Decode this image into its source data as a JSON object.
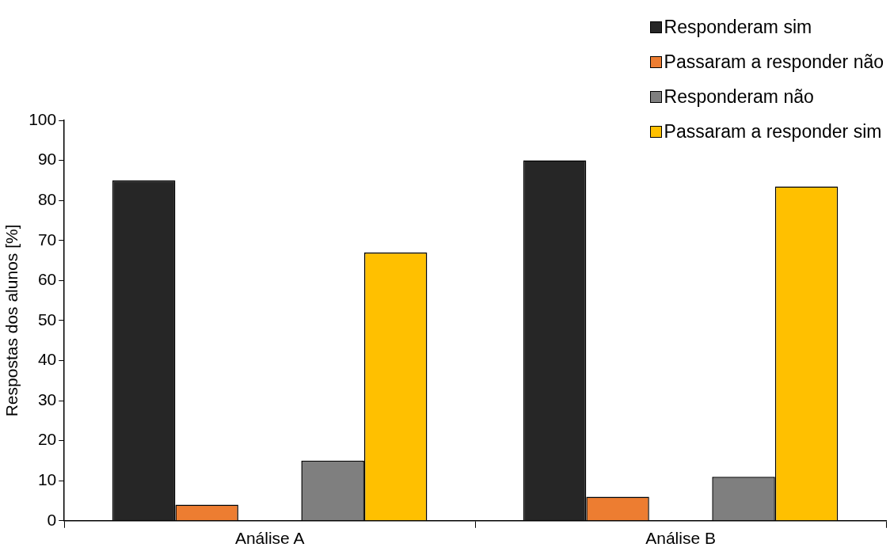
{
  "chart_data": {
    "type": "bar",
    "ylabel": "Respostas dos alunos [%]",
    "categories": [
      "Análise A",
      "Análise B"
    ],
    "series": [
      {
        "name": "Responderam sim",
        "color": "#262626",
        "values": [
          85,
          90
        ]
      },
      {
        "name": "Passaram a responder não",
        "color": "#ed7d31",
        "values": [
          4,
          6
        ]
      },
      {
        "name": "Responderam não",
        "color": "#7f7f7f",
        "values": [
          15,
          11
        ]
      },
      {
        "name": "Passaram a responder sim",
        "color": "#ffc000",
        "values": [
          67,
          83.5
        ]
      }
    ],
    "ylim": [
      0,
      100
    ],
    "yticks": [
      0,
      10,
      20,
      30,
      40,
      50,
      60,
      70,
      80,
      90,
      100
    ],
    "grid": false,
    "legend": "top right"
  }
}
